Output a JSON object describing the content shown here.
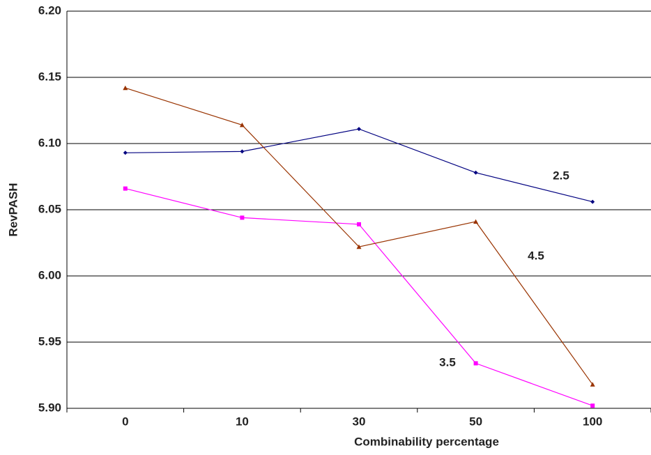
{
  "chart_data": {
    "type": "line",
    "x_label": "Combinability percentage",
    "y_label": "RevPASH",
    "categories": [
      "0",
      "10",
      "30",
      "50",
      "100"
    ],
    "series": [
      {
        "name": "2.5",
        "color": "#000080",
        "values": [
          6.093,
          6.094,
          6.111,
          6.078,
          6.056
        ]
      },
      {
        "name": "3.5",
        "color": "#ff00ff",
        "values": [
          6.066,
          6.044,
          6.039,
          5.934,
          5.902
        ]
      },
      {
        "name": "4.5",
        "color": "#993300",
        "values": [
          6.142,
          6.114,
          6.022,
          6.041,
          5.918
        ]
      }
    ],
    "ylim": [
      5.9,
      6.2
    ],
    "yticks": [
      {
        "value": 5.9,
        "label": "5.90"
      },
      5.95,
      {
        "value": 6,
        "label": "6.00"
      },
      6.05,
      {
        "value": 6.1,
        "label": "6.10"
      },
      6.15,
      {
        "value": 6.2,
        "label": "6.20"
      }
    ],
    "grid": true
  }
}
